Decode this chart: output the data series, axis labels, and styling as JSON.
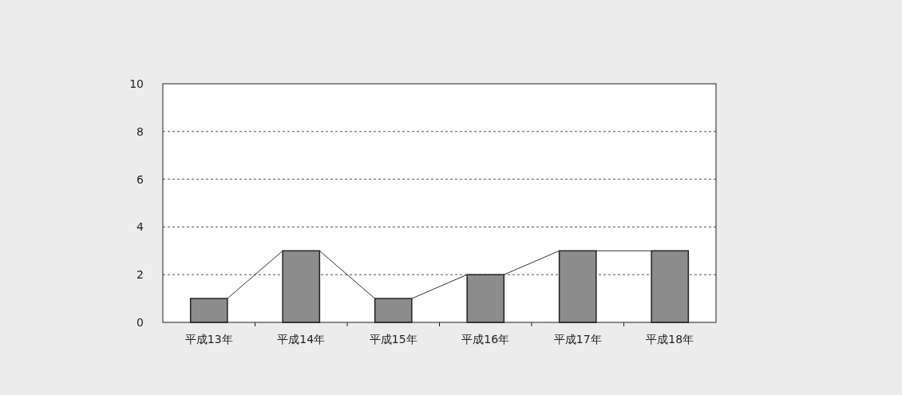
{
  "chart_data": {
    "type": "bar",
    "categories": [
      "平成13年",
      "平成14年",
      "平成15年",
      "平成16年",
      "平成17年",
      "平成18年"
    ],
    "values": [
      1,
      3,
      1,
      2,
      3,
      3
    ],
    "color": "#8c8c8c",
    "ylim": [
      0,
      10
    ],
    "yticks": [
      0,
      2,
      4,
      6,
      8,
      10
    ],
    "grid": "y",
    "line_style": "dashed"
  }
}
